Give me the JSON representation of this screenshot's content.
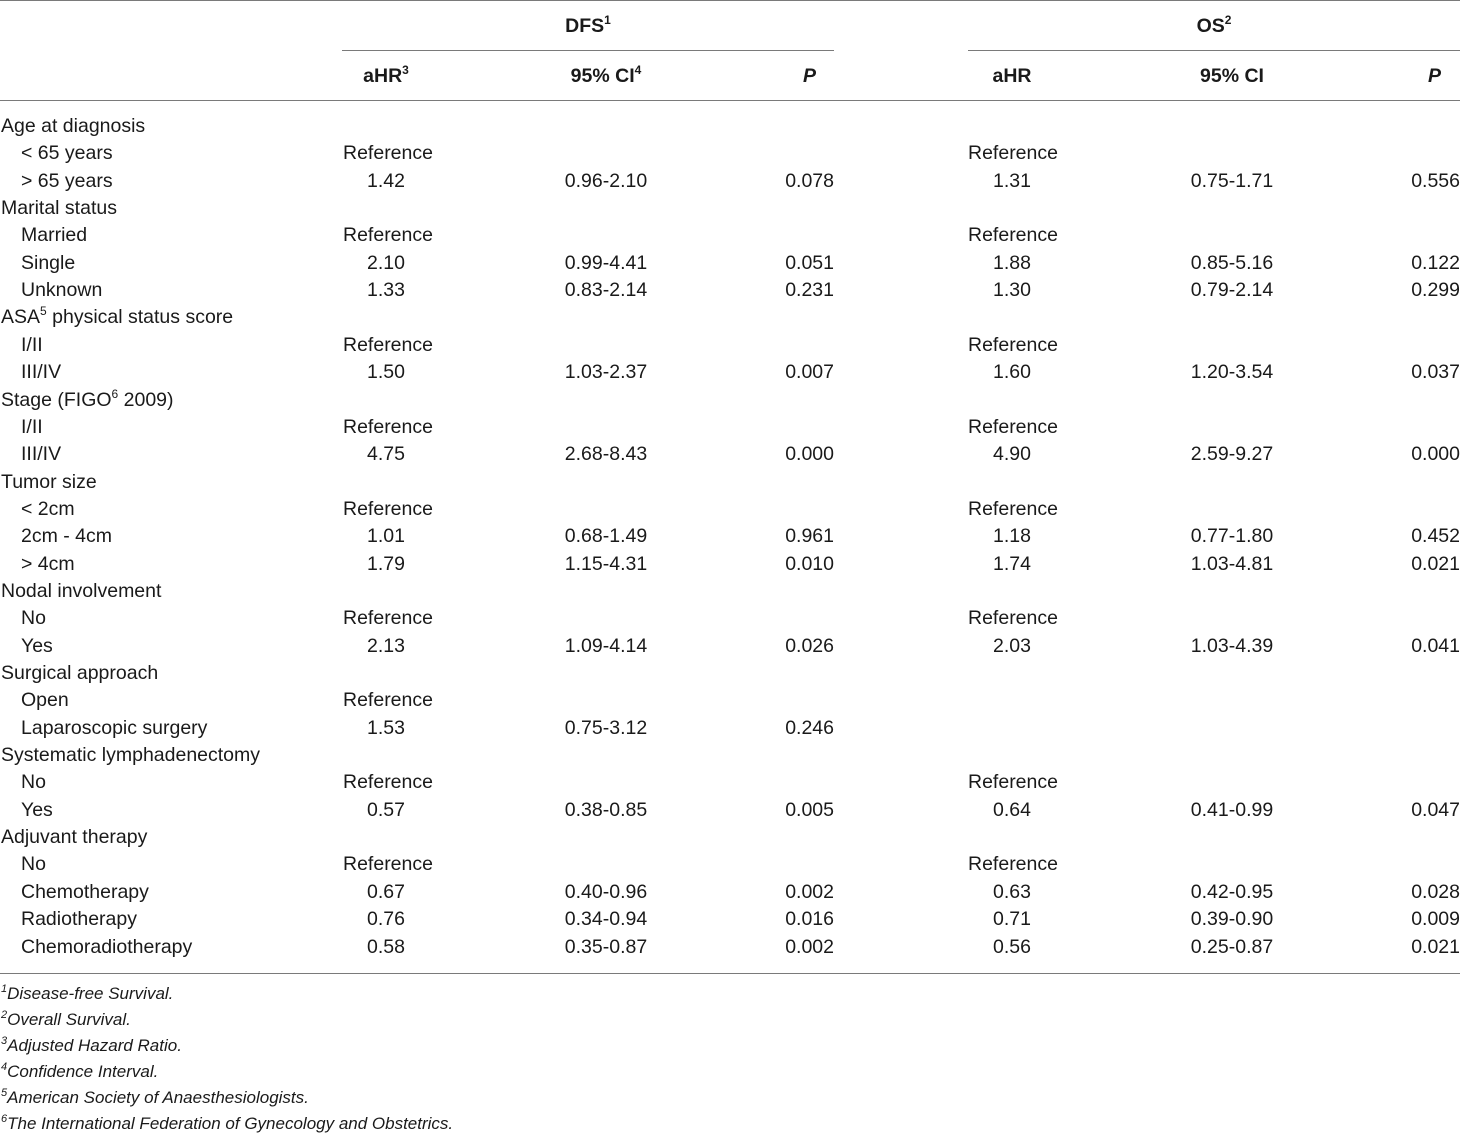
{
  "header": {
    "dfs_label": "DFS",
    "dfs_sup": "1",
    "os_label": "OS",
    "os_sup": "2",
    "ahr_label": "aHR",
    "ahr_sup": "3",
    "ci_label": "95% CI",
    "ci_sup": "4",
    "p_label": "P",
    "os_ahr_label": "aHR",
    "os_ci_label": "95% CI",
    "os_p_label": "P"
  },
  "rows": [
    {
      "label": "Age at diagnosis",
      "type": "group"
    },
    {
      "label": "< 65 years",
      "type": "sub",
      "dfs_ahr": "Reference",
      "os_ahr": "Reference"
    },
    {
      "label": "> 65 years",
      "type": "sub",
      "dfs_ahr": "1.42",
      "dfs_ci": "0.96-2.10",
      "dfs_p": "0.078",
      "os_ahr": "1.31",
      "os_ci": "0.75-1.71",
      "os_p": "0.556"
    },
    {
      "label": "Marital status",
      "type": "group"
    },
    {
      "label": "Married",
      "type": "sub",
      "dfs_ahr": "Reference",
      "os_ahr": "Reference"
    },
    {
      "label": "Single",
      "type": "sub",
      "dfs_ahr": "2.10",
      "dfs_ci": "0.99-4.41",
      "dfs_p": "0.051",
      "os_ahr": "1.88",
      "os_ci": "0.85-5.16",
      "os_p": "0.122"
    },
    {
      "label": "Unknown",
      "type": "sub",
      "dfs_ahr": "1.33",
      "dfs_ci": "0.83-2.14",
      "dfs_p": "0.231",
      "os_ahr": "1.30",
      "os_ci": "0.79-2.14",
      "os_p": "0.299"
    },
    {
      "label": "ASA",
      "label_sup": "5",
      "label_rest": " physical status score",
      "type": "group"
    },
    {
      "label": "I/II",
      "type": "sub",
      "dfs_ahr": "Reference",
      "os_ahr": "Reference"
    },
    {
      "label": "III/IV",
      "type": "sub",
      "dfs_ahr": "1.50",
      "dfs_ci": "1.03-2.37",
      "dfs_p": "0.007",
      "os_ahr": "1.60",
      "os_ci": "1.20-3.54",
      "os_p": "0.037"
    },
    {
      "label": "Stage (FIGO",
      "label_sup": "6",
      "label_rest": " 2009)",
      "type": "group"
    },
    {
      "label": "I/II",
      "type": "sub",
      "dfs_ahr": "Reference",
      "os_ahr": "Reference"
    },
    {
      "label": "III/IV",
      "type": "sub",
      "dfs_ahr": "4.75",
      "dfs_ci": "2.68-8.43",
      "dfs_p": "0.000",
      "os_ahr": "4.90",
      "os_ci": "2.59-9.27",
      "os_p": "0.000"
    },
    {
      "label": "Tumor size",
      "type": "group"
    },
    {
      "label": "< 2cm",
      "type": "sub",
      "dfs_ahr": "Reference",
      "os_ahr": "Reference"
    },
    {
      "label": "2cm - 4cm",
      "type": "sub",
      "dfs_ahr": "1.01",
      "dfs_ci": "0.68-1.49",
      "dfs_p": "0.961",
      "os_ahr": "1.18",
      "os_ci": "0.77-1.80",
      "os_p": "0.452"
    },
    {
      "label": "> 4cm",
      "type": "sub",
      "dfs_ahr": "1.79",
      "dfs_ci": "1.15-4.31",
      "dfs_p": "0.010",
      "os_ahr": "1.74",
      "os_ci": "1.03-4.81",
      "os_p": "0.021"
    },
    {
      "label": "Nodal involvement",
      "type": "group"
    },
    {
      "label": "No",
      "type": "sub",
      "dfs_ahr": "Reference",
      "os_ahr": "Reference"
    },
    {
      "label": "Yes",
      "type": "sub",
      "dfs_ahr": "2.13",
      "dfs_ci": "1.09-4.14",
      "dfs_p": "0.026",
      "os_ahr": "2.03",
      "os_ci": "1.03-4.39",
      "os_p": "0.041"
    },
    {
      "label": "Surgical approach",
      "type": "group"
    },
    {
      "label": "Open",
      "type": "sub",
      "dfs_ahr": "Reference"
    },
    {
      "label": "Laparoscopic surgery",
      "type": "sub",
      "dfs_ahr": "1.53",
      "dfs_ci": "0.75-3.12",
      "dfs_p": "0.246"
    },
    {
      "label": "Systematic lymphadenectomy",
      "type": "group"
    },
    {
      "label": "No",
      "type": "sub",
      "dfs_ahr": "Reference",
      "os_ahr": "Reference"
    },
    {
      "label": "Yes",
      "type": "sub",
      "dfs_ahr": "0.57",
      "dfs_ci": "0.38-0.85",
      "dfs_p": "0.005",
      "os_ahr": "0.64",
      "os_ci": "0.41-0.99",
      "os_p": "0.047"
    },
    {
      "label": "Adjuvant therapy",
      "type": "group"
    },
    {
      "label": "No",
      "type": "sub",
      "dfs_ahr": "Reference",
      "os_ahr": "Reference"
    },
    {
      "label": "Chemotherapy",
      "type": "sub",
      "dfs_ahr": "0.67",
      "dfs_ci": "0.40-0.96",
      "dfs_p": "0.002",
      "os_ahr": "0.63",
      "os_ci": "0.42-0.95",
      "os_p": "0.028"
    },
    {
      "label": "Radiotherapy",
      "type": "sub",
      "dfs_ahr": "0.76",
      "dfs_ci": "0.34-0.94",
      "dfs_p": "0.016",
      "os_ahr": "0.71",
      "os_ci": "0.39-0.90",
      "os_p": "0.009"
    },
    {
      "label": "Chemoradiotherapy",
      "type": "sub",
      "dfs_ahr": "0.58",
      "dfs_ci": "0.35-0.87",
      "dfs_p": "0.002",
      "os_ahr": "0.56",
      "os_ci": "0.25-0.87",
      "os_p": "0.021"
    }
  ],
  "footnotes": [
    {
      "sup": "1",
      "text": "Disease-free Survival."
    },
    {
      "sup": "2",
      "text": "Overall Survival."
    },
    {
      "sup": "3",
      "text": "Adjusted Hazard Ratio."
    },
    {
      "sup": "4",
      "text": "Confidence Interval."
    },
    {
      "sup": "5",
      "text": "American Society of Anaesthesiologists."
    },
    {
      "sup": "6",
      "text": "The International Federation of Gynecology and Obstetrics."
    }
  ]
}
